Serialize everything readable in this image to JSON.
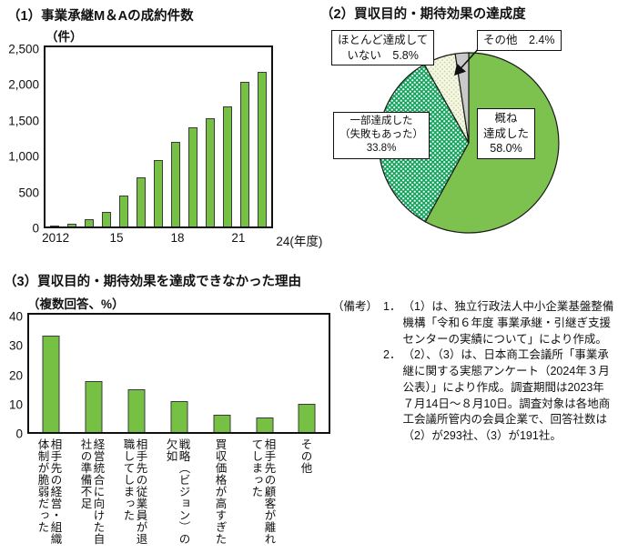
{
  "colors": {
    "bar_green": "#76c144",
    "bar_border": "#3b3b3b",
    "pie_solid_green": "#7dc24e",
    "pie_dot_green_bg": "#12a45c",
    "pie_dot_white": "#ffffff",
    "pie_pale_bg": "#f8f6e4",
    "pie_pale_dot": "#b9d89d",
    "pie_gray": "#c9c9c9",
    "outline": "#1a1a1a"
  },
  "chart_data": [
    {
      "id": "ma_contracts",
      "type": "bar",
      "title": "（1）事業承継M＆Aの成約件数",
      "unit": "（件）",
      "categories": [
        "2012",
        "2013",
        "2014",
        "2015",
        "2016",
        "2017",
        "2018",
        "2019",
        "2020",
        "2021",
        "2022",
        "2023",
        "2024"
      ],
      "values": [
        17,
        33,
        102,
        209,
        430,
        687,
        923,
        1176,
        1379,
        1514,
        1681,
        2023,
        2157
      ],
      "ylim": [
        0,
        2500
      ],
      "yticks": [
        {
          "value": 0,
          "label": "0"
        },
        {
          "value": 500,
          "label": "500"
        },
        {
          "value": 1000,
          "label": "1,000"
        },
        {
          "value": 1500,
          "label": "1,500"
        },
        {
          "value": 2000,
          "label": "2,000"
        },
        {
          "value": 2500,
          "label": "2,500"
        }
      ],
      "xticks": [
        {
          "index": 0,
          "label": "2012"
        },
        {
          "index": 3,
          "label": "15"
        },
        {
          "index": 6,
          "label": "18"
        },
        {
          "index": 9,
          "label": "21"
        },
        {
          "index": 12,
          "label": "24(年度)"
        }
      ],
      "grid": false
    },
    {
      "id": "achievement_degree",
      "type": "pie",
      "title": "（2）買収目的・期待効果の達成度",
      "start_angle_deg": 0,
      "direction": "clockwise",
      "slices": [
        {
          "label": "概ね達成した",
          "pct": 58.0,
          "fill": "solid-green",
          "label_lines": "概ね\n達成した\n58.0%"
        },
        {
          "label": "一部達成した（失敗もあった）",
          "pct": 33.8,
          "fill": "dotted-green",
          "label_lines": "一部達成した\n（失敗もあった）\n33.8%"
        },
        {
          "label": "ほとんど達成していない",
          "pct": 5.8,
          "fill": "dotted-pale",
          "label_lines": "ほとんど達成して\nいない　5.8%"
        },
        {
          "label": "その他",
          "pct": 2.4,
          "fill": "gray",
          "label_lines": "その他　2.4%"
        }
      ]
    },
    {
      "id": "failure_reasons",
      "type": "bar",
      "title": "（3）買収目的・期待効果を達成できなかった理由",
      "subtitle": "（複数回答、%）",
      "categories": [
        "相手先の経営・組織体制が脆弱だった",
        "経営統合に向けた自社の準備不足",
        "相手先の従業員が退職してしまった",
        "戦略（ビジョン）の欠如",
        "買収価格が高すぎた",
        "相手先の顧客が離れてしまった",
        "その他"
      ],
      "values": [
        33,
        17.3,
        14.5,
        10.5,
        6,
        5,
        9.7
      ],
      "ylim": [
        0,
        40
      ],
      "yticks": [
        {
          "value": 0,
          "label": "0"
        },
        {
          "value": 10,
          "label": "10"
        },
        {
          "value": 20,
          "label": "20"
        },
        {
          "value": 30,
          "label": "30"
        },
        {
          "value": 40,
          "label": "40"
        }
      ],
      "grid": false
    }
  ],
  "notes": {
    "label": "（備考）",
    "items": [
      {
        "no": "1．",
        "text": "（1）は、独立行政法人中小企業基盤整備機構「令和６年度 事業承継・引継ぎ支援センターの実績について」により作成。"
      },
      {
        "no": "2．",
        "text": "（2）、（3）は、日本商工会議所「事業承継に関する実態アンケート（2024年３月公表）」により作成。調査期間は2023年７月14日～８月10日。調査対象は各地商工会議所管内の会員企業で、回答社数は（2）が293社、（3）が191社。"
      }
    ]
  }
}
